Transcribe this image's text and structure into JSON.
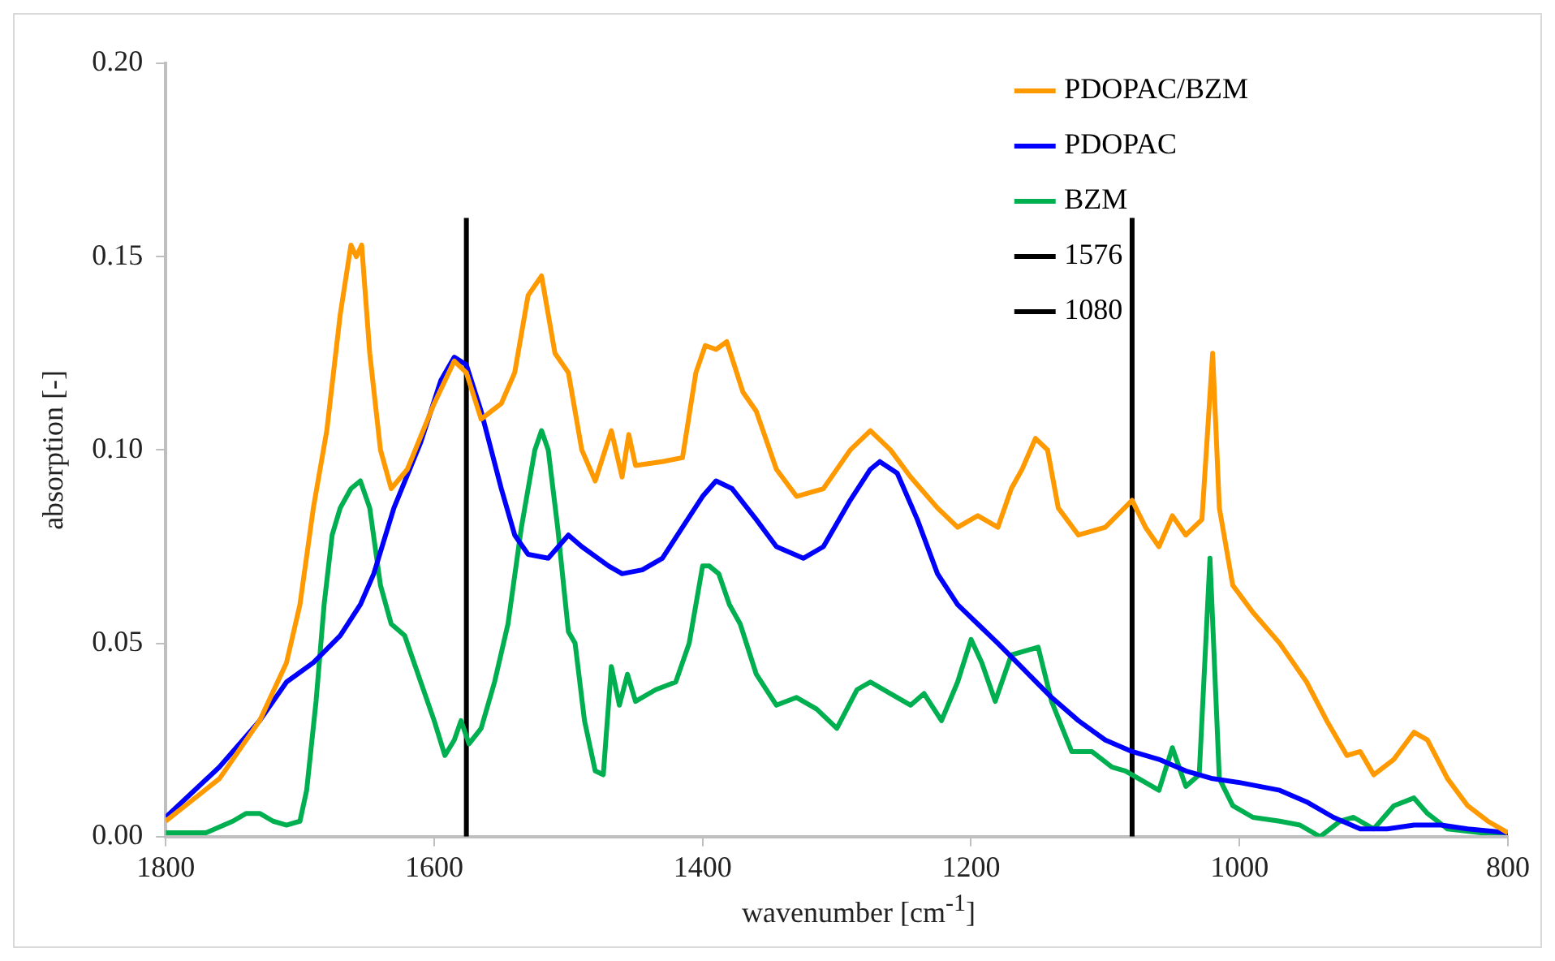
{
  "chart_data": {
    "type": "line",
    "xlabel": "wavenumber [cm$^{-1}$]",
    "ylabel": "absorption [-]",
    "xlim": [
      1800,
      800
    ],
    "xticks": [
      1800,
      1600,
      1400,
      1200,
      1000,
      800
    ],
    "ylim": [
      0,
      0.2
    ],
    "yticks": [
      {
        "value": 0,
        "label": "0.00"
      },
      {
        "value": 0.05,
        "label": "0.05"
      },
      {
        "value": 0.1,
        "label": "0.10"
      },
      {
        "value": 0.15,
        "label": "0.15"
      },
      {
        "value": 0.2,
        "label": "0.20"
      }
    ],
    "grid": false,
    "legend": "top right",
    "marker": "none",
    "line_style": "solid",
    "series": [
      {
        "name": "PDOPAC/BZM",
        "color": "#ff9900",
        "x": [
          1800,
          1760,
          1730,
          1710,
          1700,
          1690,
          1680,
          1670,
          1662,
          1658,
          1654,
          1648,
          1640,
          1632,
          1620,
          1600,
          1585,
          1576,
          1565,
          1550,
          1540,
          1530,
          1520,
          1510,
          1500,
          1490,
          1480,
          1468,
          1460,
          1455,
          1450,
          1430,
          1415,
          1405,
          1398,
          1390,
          1382,
          1370,
          1360,
          1345,
          1330,
          1310,
          1290,
          1275,
          1260,
          1245,
          1225,
          1210,
          1195,
          1180,
          1170,
          1162,
          1152,
          1143,
          1135,
          1120,
          1100,
          1080,
          1070,
          1060,
          1050,
          1040,
          1028,
          1020,
          1015,
          1005,
          990,
          970,
          950,
          935,
          920,
          910,
          900,
          885,
          870,
          860,
          845,
          830,
          815,
          805,
          800
        ],
        "values": [
          0.004,
          0.015,
          0.03,
          0.045,
          0.06,
          0.085,
          0.105,
          0.135,
          0.153,
          0.15,
          0.153,
          0.125,
          0.1,
          0.09,
          0.095,
          0.112,
          0.123,
          0.12,
          0.108,
          0.112,
          0.12,
          0.14,
          0.145,
          0.125,
          0.12,
          0.1,
          0.092,
          0.105,
          0.093,
          0.104,
          0.096,
          0.097,
          0.098,
          0.12,
          0.127,
          0.126,
          0.128,
          0.115,
          0.11,
          0.095,
          0.088,
          0.09,
          0.1,
          0.105,
          0.1,
          0.093,
          0.085,
          0.08,
          0.083,
          0.08,
          0.09,
          0.095,
          0.103,
          0.1,
          0.085,
          0.078,
          0.08,
          0.087,
          0.08,
          0.075,
          0.083,
          0.078,
          0.082,
          0.125,
          0.085,
          0.065,
          0.058,
          0.05,
          0.04,
          0.03,
          0.021,
          0.022,
          0.016,
          0.02,
          0.027,
          0.025,
          0.015,
          0.008,
          0.004,
          0.002,
          0.001
        ]
      },
      {
        "name": "PDOPAC",
        "color": "#0000ff",
        "x": [
          1800,
          1760,
          1730,
          1710,
          1690,
          1670,
          1655,
          1645,
          1630,
          1610,
          1595,
          1585,
          1576,
          1565,
          1550,
          1540,
          1530,
          1515,
          1500,
          1490,
          1470,
          1460,
          1445,
          1430,
          1415,
          1400,
          1390,
          1378,
          1360,
          1345,
          1325,
          1310,
          1290,
          1275,
          1268,
          1255,
          1240,
          1225,
          1210,
          1195,
          1180,
          1160,
          1140,
          1120,
          1100,
          1080,
          1060,
          1040,
          1020,
          1000,
          970,
          950,
          930,
          910,
          890,
          870,
          850,
          830,
          800
        ],
        "values": [
          0.005,
          0.018,
          0.03,
          0.04,
          0.045,
          0.052,
          0.06,
          0.068,
          0.085,
          0.102,
          0.118,
          0.124,
          0.122,
          0.11,
          0.09,
          0.078,
          0.073,
          0.072,
          0.078,
          0.075,
          0.07,
          0.068,
          0.069,
          0.072,
          0.08,
          0.088,
          0.092,
          0.09,
          0.082,
          0.075,
          0.072,
          0.075,
          0.087,
          0.095,
          0.097,
          0.094,
          0.082,
          0.068,
          0.06,
          0.055,
          0.05,
          0.043,
          0.036,
          0.03,
          0.025,
          0.022,
          0.02,
          0.017,
          0.015,
          0.014,
          0.012,
          0.009,
          0.005,
          0.002,
          0.002,
          0.003,
          0.003,
          0.002,
          0.001
        ]
      },
      {
        "name": "BZM",
        "color": "#00b050",
        "x": [
          1800,
          1770,
          1750,
          1740,
          1730,
          1720,
          1710,
          1700,
          1695,
          1688,
          1682,
          1676,
          1670,
          1662,
          1655,
          1648,
          1640,
          1632,
          1622,
          1610,
          1600,
          1592,
          1585,
          1580,
          1574,
          1565,
          1555,
          1545,
          1535,
          1525,
          1520,
          1515,
          1508,
          1500,
          1495,
          1488,
          1480,
          1474,
          1468,
          1462,
          1456,
          1450,
          1435,
          1420,
          1410,
          1400,
          1395,
          1388,
          1380,
          1372,
          1360,
          1345,
          1330,
          1315,
          1300,
          1285,
          1275,
          1260,
          1245,
          1235,
          1222,
          1210,
          1200,
          1192,
          1182,
          1170,
          1160,
          1150,
          1140,
          1125,
          1110,
          1095,
          1085,
          1075,
          1060,
          1050,
          1040,
          1030,
          1022,
          1015,
          1005,
          990,
          970,
          955,
          940,
          925,
          915,
          900,
          885,
          870,
          860,
          845,
          820,
          800
        ],
        "values": [
          0.001,
          0.001,
          0.004,
          0.006,
          0.006,
          0.004,
          0.003,
          0.004,
          0.012,
          0.035,
          0.06,
          0.078,
          0.085,
          0.09,
          0.092,
          0.085,
          0.065,
          0.055,
          0.052,
          0.04,
          0.03,
          0.021,
          0.025,
          0.03,
          0.024,
          0.028,
          0.04,
          0.055,
          0.08,
          0.1,
          0.105,
          0.1,
          0.08,
          0.053,
          0.05,
          0.03,
          0.017,
          0.016,
          0.044,
          0.034,
          0.042,
          0.035,
          0.038,
          0.04,
          0.05,
          0.07,
          0.07,
          0.068,
          0.06,
          0.055,
          0.042,
          0.034,
          0.036,
          0.033,
          0.028,
          0.038,
          0.04,
          0.037,
          0.034,
          0.037,
          0.03,
          0.04,
          0.051,
          0.045,
          0.035,
          0.047,
          0.048,
          0.049,
          0.035,
          0.022,
          0.022,
          0.018,
          0.017,
          0.015,
          0.012,
          0.023,
          0.013,
          0.016,
          0.072,
          0.015,
          0.008,
          0.005,
          0.004,
          0.003,
          0,
          0.004,
          0.005,
          0.002,
          0.008,
          0.01,
          0.006,
          0.002,
          0.001,
          0.001
        ]
      },
      {
        "name": "1576",
        "color": "#000000",
        "x": [
          1576,
          1576
        ],
        "values": [
          0,
          0.16
        ]
      },
      {
        "name": "1080",
        "color": "#000000",
        "x": [
          1080,
          1080
        ],
        "values": [
          0,
          0.16
        ]
      }
    ]
  }
}
